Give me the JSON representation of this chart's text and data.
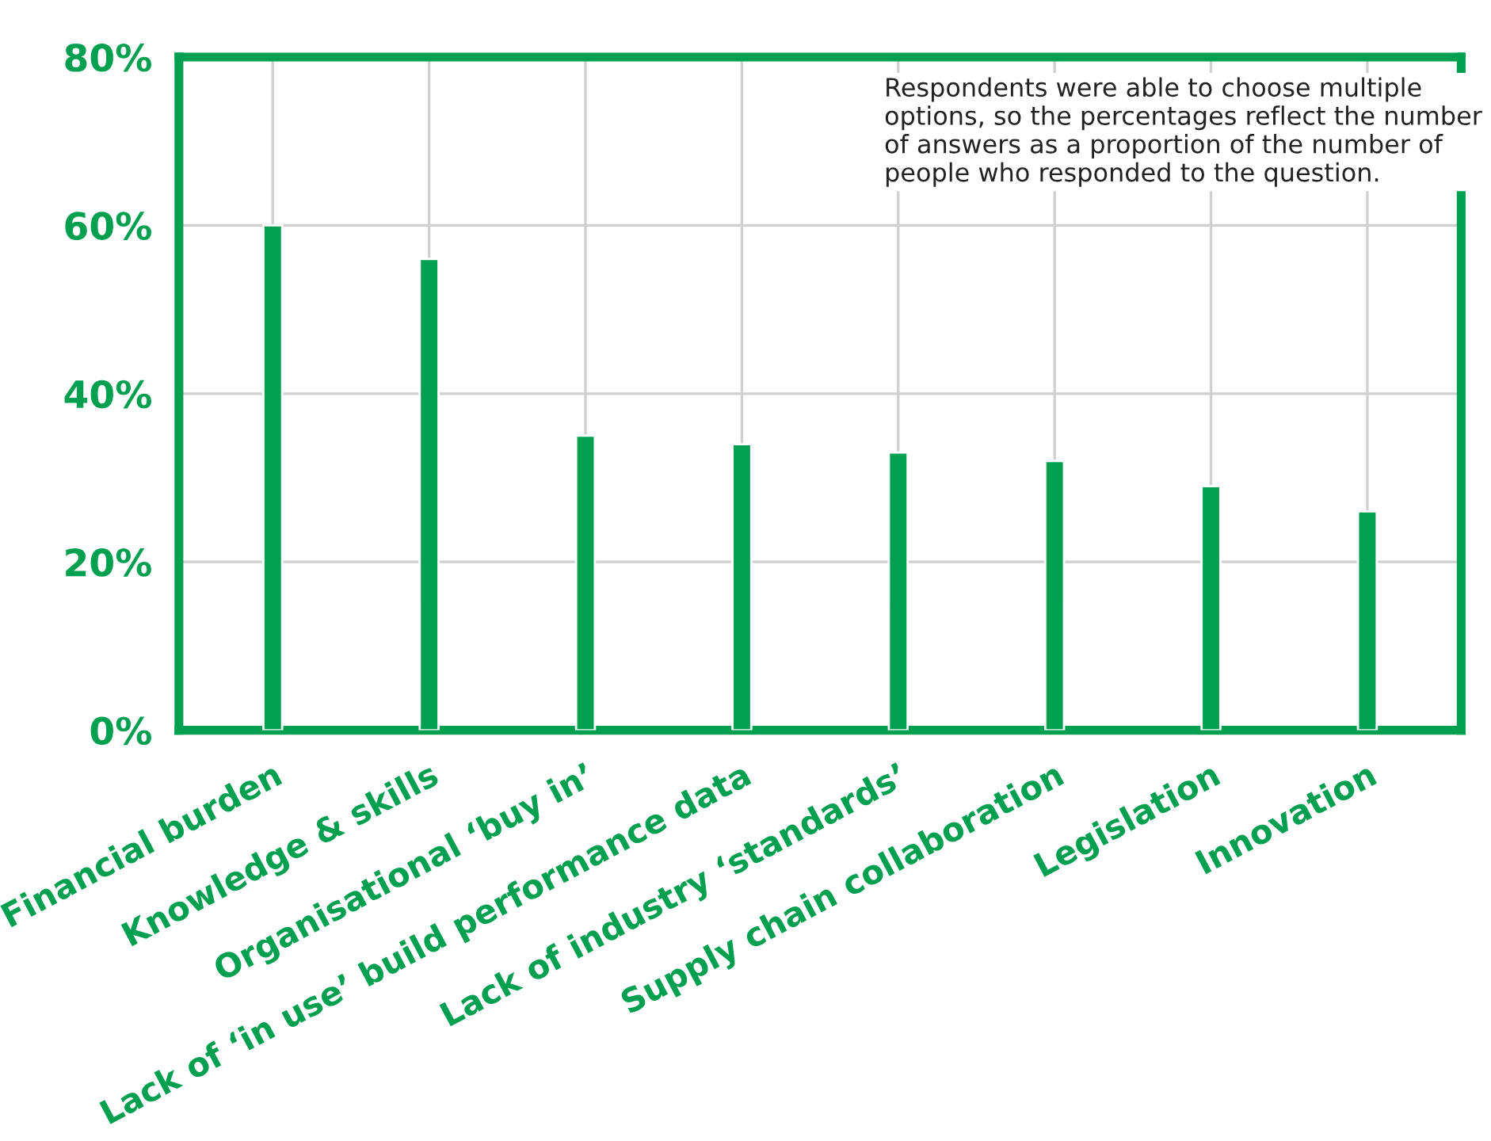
{
  "chart_data": {
    "type": "bar",
    "categories": [
      "Financial burden",
      "Knowledge & skills",
      "Organisational ‘buy in’",
      "Lack of ‘in use’ build performance data",
      "Lack of industry ‘standards’",
      "Supply chain collaboration",
      "Legislation",
      "Innovation"
    ],
    "values": [
      60,
      56,
      35,
      34,
      33,
      32,
      29,
      26
    ],
    "color": "#00a050",
    "ylim": [
      0,
      80
    ],
    "yticks": [
      {
        "value": 0,
        "label": "0%"
      },
      {
        "value": 20,
        "label": "20%"
      },
      {
        "value": 40,
        "label": "40%"
      },
      {
        "value": 60,
        "label": "60%"
      },
      {
        "value": 80,
        "label": "80%"
      }
    ],
    "grid": true,
    "annotations": [
      "Respondents were able to choose multiple options, so the percentages reflect the number of answers as a proportion of the number of people who responded to the question."
    ]
  }
}
